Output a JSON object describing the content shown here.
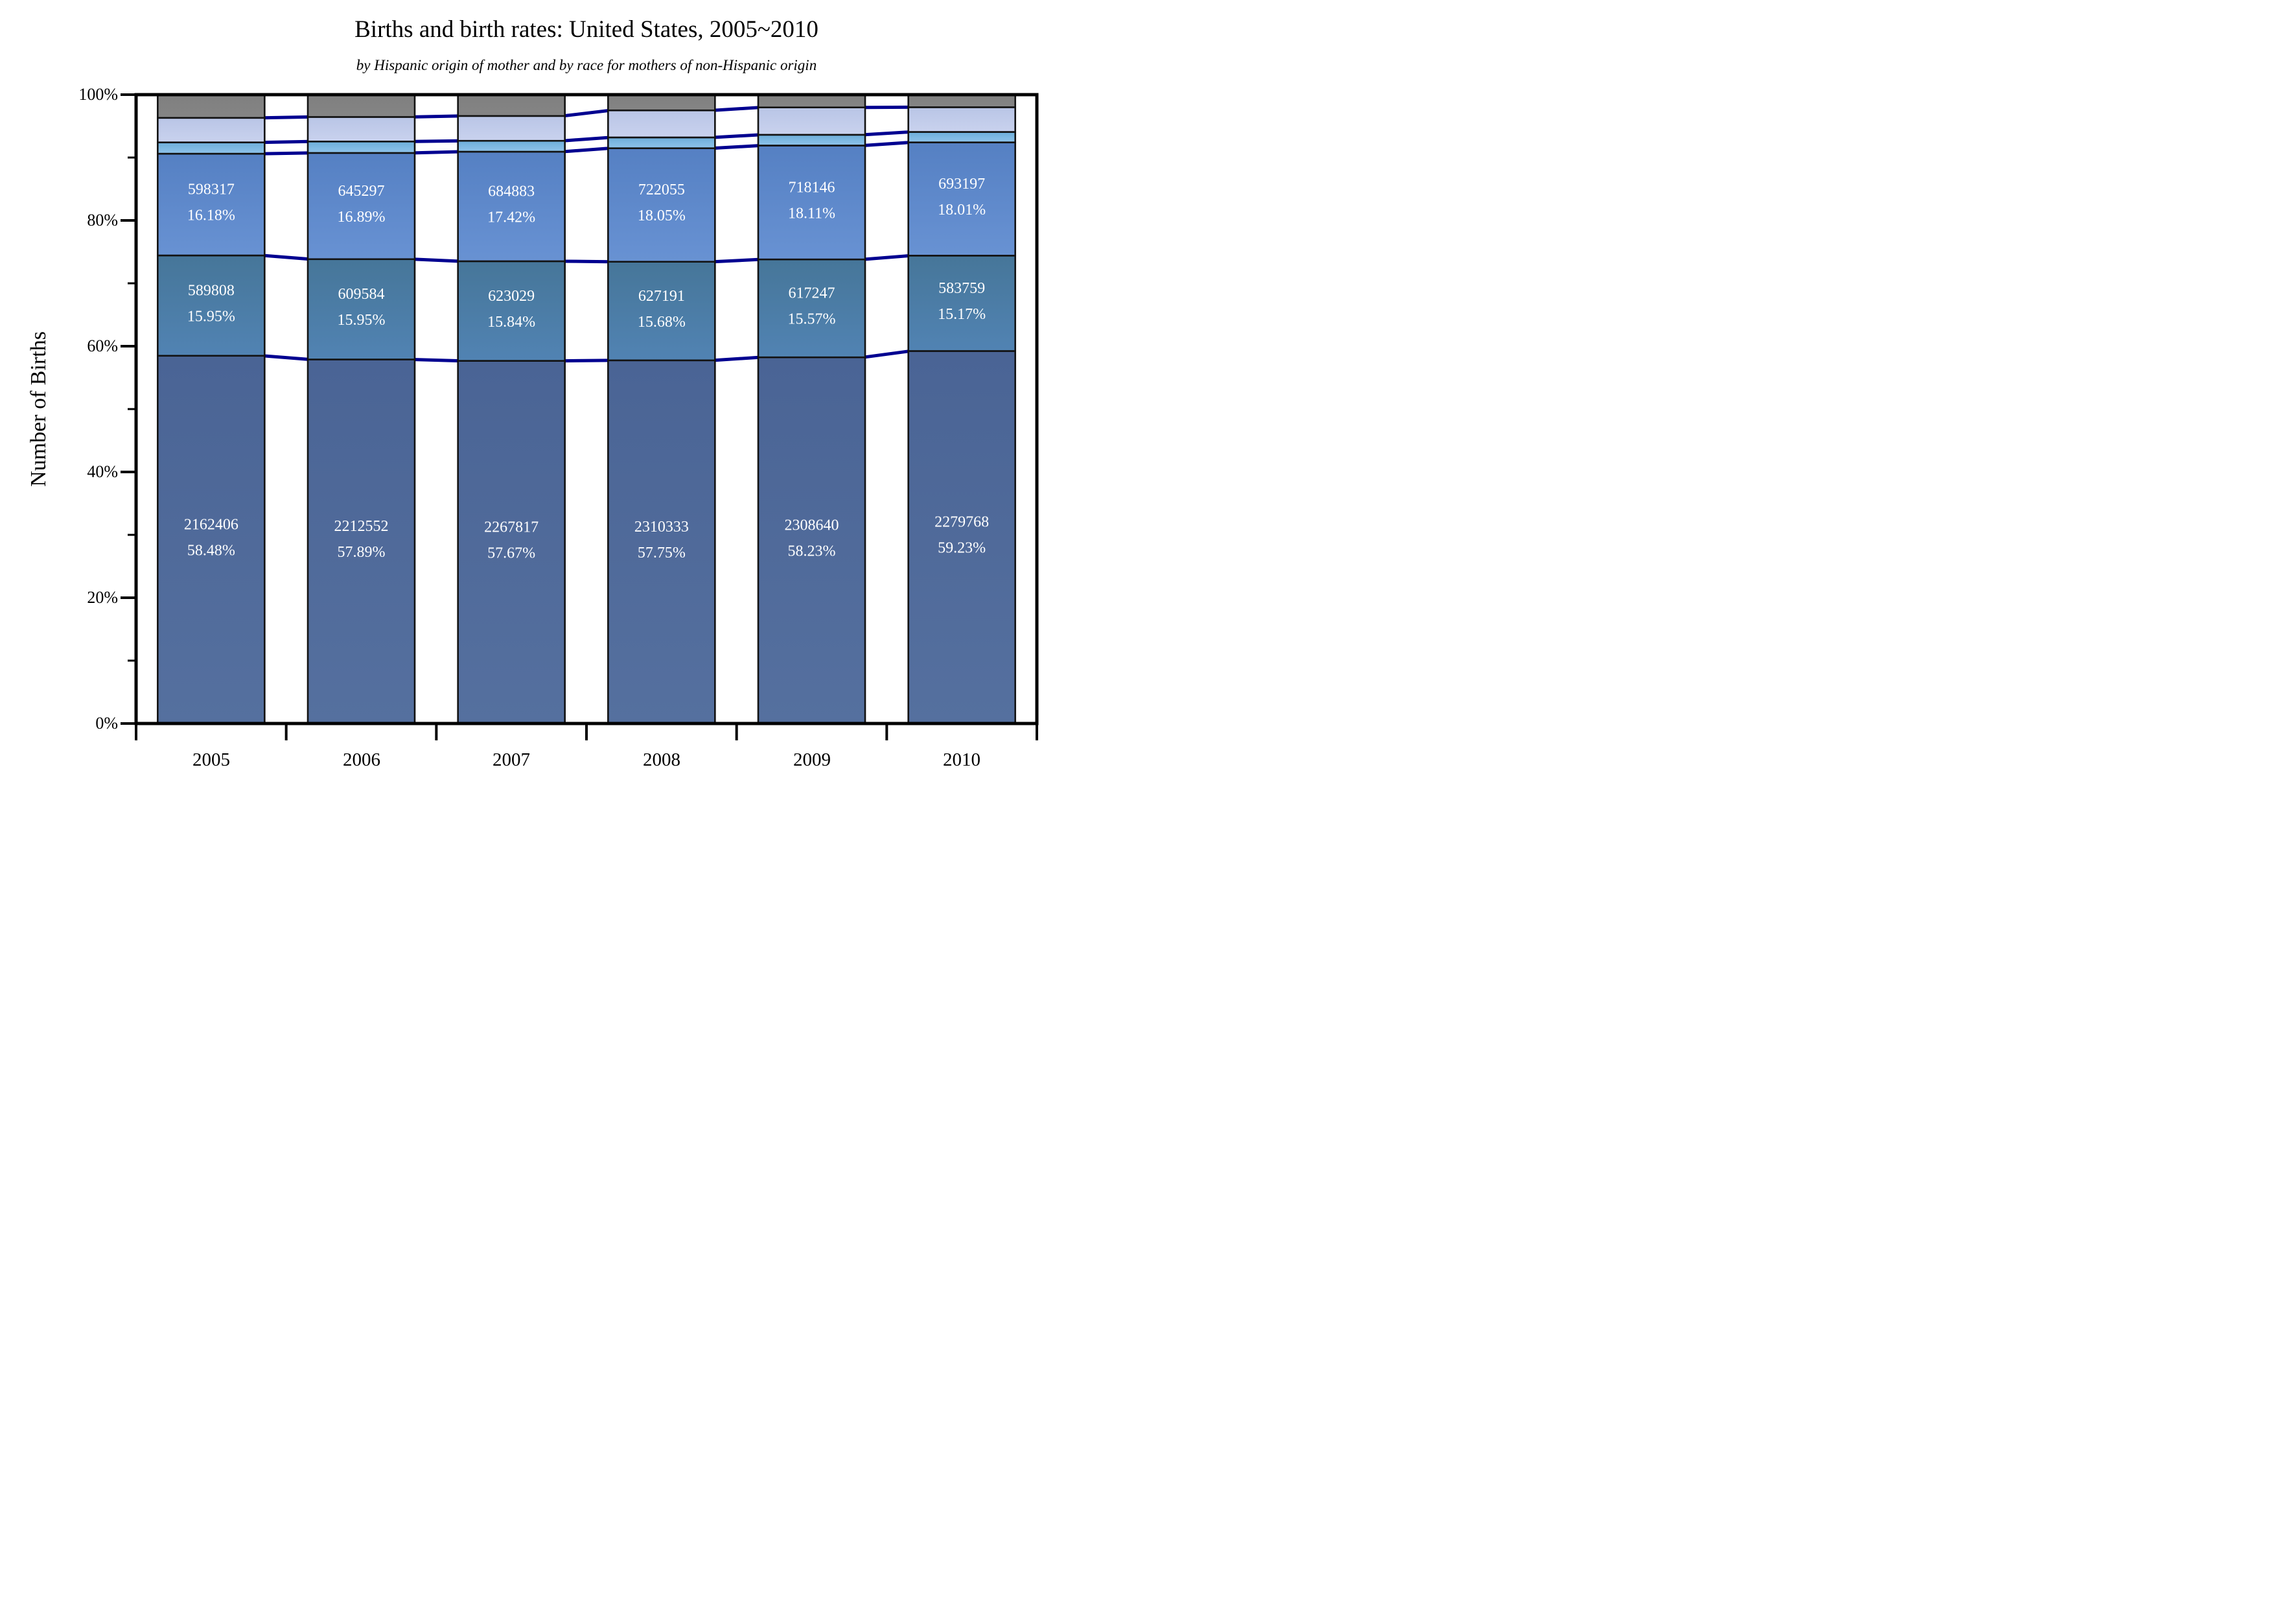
{
  "chart_data": {
    "type": "bar",
    "stacked": true,
    "percent_stacked": true,
    "title": "Births and birth rates: United States, 2005~2010",
    "subtitle": "by Hispanic origin of mother and by race for mothers of non-Hispanic origin",
    "ylabel": "Number of Births",
    "x_categories": [
      "2005",
      "2006",
      "2007",
      "2008",
      "2009",
      "2010"
    ],
    "y_ticks": [
      "0%",
      "20%",
      "40%",
      "60%",
      "80%",
      "100%"
    ],
    "y_minor_ticks_pct": [
      10,
      30,
      50,
      70,
      90
    ],
    "ylim": [
      0,
      100
    ],
    "grid": false,
    "legend": "none",
    "connector_color": "#000090",
    "axis_color": "#000000",
    "label_text_color": "#ffffff",
    "series": [
      {
        "name": "dark-slate-blue",
        "color": "#4a6495",
        "color2": "#55709f",
        "values_pct": [
          58.48,
          57.89,
          57.67,
          57.75,
          58.23,
          59.23
        ],
        "counts": [
          "2162406",
          "2212552",
          "2267817",
          "2310333",
          "2308640",
          "2279768"
        ],
        "pct_labels": [
          "58.48%",
          "57.89%",
          "57.67%",
          "57.75%",
          "58.23%",
          "59.23%"
        ]
      },
      {
        "name": "steel-blue",
        "color": "#467699",
        "color2": "#5183b3",
        "values_pct": [
          15.95,
          15.95,
          15.84,
          15.68,
          15.57,
          15.17
        ],
        "counts": [
          "589808",
          "609584",
          "623029",
          "627191",
          "617247",
          "583759"
        ],
        "pct_labels": [
          "15.95%",
          "15.95%",
          "15.84%",
          "15.68%",
          "15.57%",
          "15.17%"
        ]
      },
      {
        "name": "medium-blue",
        "color": "#5580c3",
        "color2": "#6892d3",
        "values_pct": [
          16.18,
          16.89,
          17.42,
          18.05,
          18.11,
          18.01
        ],
        "counts": [
          "598317",
          "645297",
          "684883",
          "722055",
          "718146",
          "693197"
        ],
        "pct_labels": [
          "16.18%",
          "16.89%",
          "17.42%",
          "18.05%",
          "18.11%",
          "18.01%"
        ]
      },
      {
        "name": "sky-blue",
        "color": "#6cadd9",
        "color2": "#8fc3ea",
        "values_pct": [
          1.8,
          1.82,
          1.73,
          1.72,
          1.71,
          1.66
        ]
      },
      {
        "name": "lavender",
        "color": "#b9c5e6",
        "color2": "#c9d2ee",
        "values_pct": [
          3.9,
          3.9,
          3.95,
          4.3,
          4.35,
          3.93
        ]
      },
      {
        "name": "gray",
        "color": "#7f7f7f",
        "color2": "#858585",
        "values_pct": [
          3.69,
          3.55,
          3.39,
          2.5,
          2.03,
          2.0
        ]
      }
    ]
  }
}
